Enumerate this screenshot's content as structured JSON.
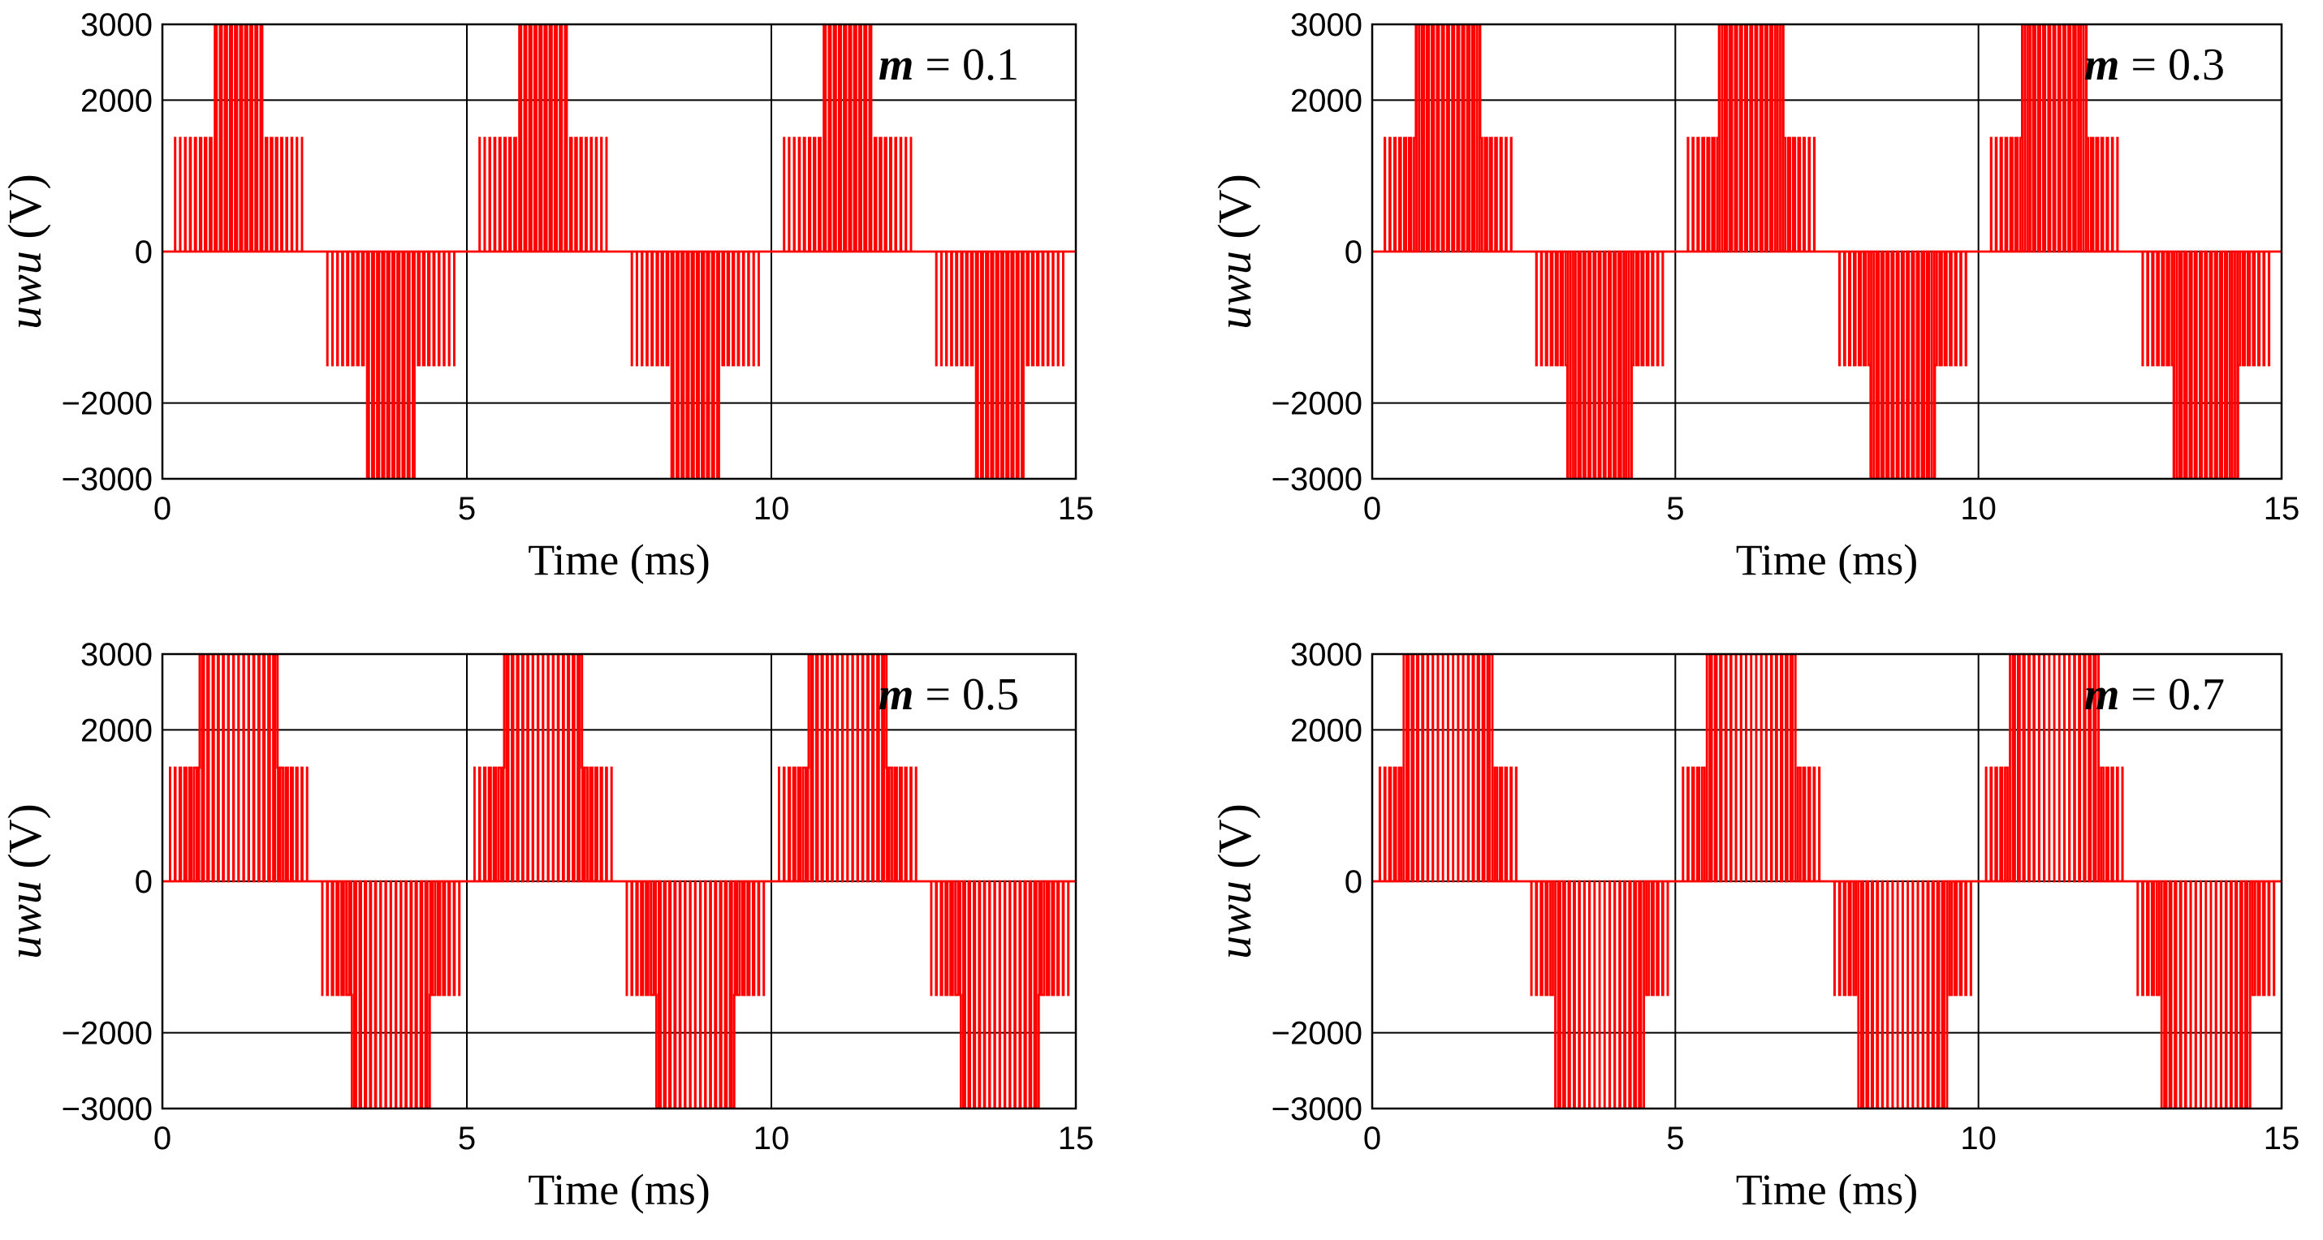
{
  "figure": {
    "colors": {
      "signal": "#ff0000",
      "axes": "#000000",
      "background": "#ffffff"
    }
  },
  "chart_data": [
    {
      "type": "line",
      "panel": "top-left",
      "title": "",
      "xlabel": "Time (ms)",
      "ylabel_main": "u",
      "ylabel_sub": "wu",
      "ylabel_unit": " (V)",
      "xlim": [
        0,
        15
      ],
      "ylim": [
        -3000,
        3000
      ],
      "xticks": [
        0,
        5,
        10,
        15
      ],
      "xtick_labels": [
        "0",
        "5",
        "10",
        "15"
      ],
      "yticks": [
        -3000,
        -2000,
        0,
        2000,
        3000
      ],
      "ytick_labels": [
        "−3000",
        "−2000",
        "0",
        "2000",
        "3000"
      ],
      "grid": true,
      "annotation": {
        "m_text": "m",
        "value_text": " = 0.1",
        "position": "top-right"
      },
      "modulation_index": 0.1,
      "fundamental_period_ms": 5,
      "carrier_frequency_khz": 6,
      "pulse_levels_v": [
        -3000,
        -1500,
        1500,
        3000
      ],
      "series": [
        {
          "name": "uwu",
          "color": "#ff0000"
        }
      ]
    },
    {
      "type": "line",
      "panel": "top-right",
      "title": "",
      "xlabel": "Time (ms)",
      "ylabel_main": "u",
      "ylabel_sub": "wu",
      "ylabel_unit": " (V)",
      "xlim": [
        0,
        15
      ],
      "ylim": [
        -3000,
        3000
      ],
      "xticks": [
        0,
        5,
        10,
        15
      ],
      "xtick_labels": [
        "0",
        "5",
        "10",
        "15"
      ],
      "yticks": [
        -3000,
        -2000,
        0,
        2000,
        3000
      ],
      "ytick_labels": [
        "−3000",
        "−2000",
        "0",
        "2000",
        "3000"
      ],
      "grid": true,
      "annotation": {
        "m_text": "m",
        "value_text": " = 0.3",
        "position": "top-right"
      },
      "modulation_index": 0.3,
      "fundamental_period_ms": 5,
      "carrier_frequency_khz": 6,
      "pulse_levels_v": [
        -3000,
        -1500,
        1500,
        3000
      ],
      "series": [
        {
          "name": "uwu",
          "color": "#ff0000"
        }
      ]
    },
    {
      "type": "line",
      "panel": "bottom-left",
      "title": "",
      "xlabel": "Time (ms)",
      "ylabel_main": "u",
      "ylabel_sub": "wu",
      "ylabel_unit": " (V)",
      "xlim": [
        0,
        15
      ],
      "ylim": [
        -3000,
        3000
      ],
      "xticks": [
        0,
        5,
        10,
        15
      ],
      "xtick_labels": [
        "0",
        "5",
        "10",
        "15"
      ],
      "yticks": [
        -3000,
        -2000,
        0,
        2000,
        3000
      ],
      "ytick_labels": [
        "−3000",
        "−2000",
        "0",
        "2000",
        "3000"
      ],
      "grid": true,
      "annotation": {
        "m_text": "m",
        "value_text": " = 0.5",
        "position": "top-right"
      },
      "modulation_index": 0.5,
      "fundamental_period_ms": 5,
      "carrier_frequency_khz": 6,
      "pulse_levels_v": [
        -3000,
        -1500,
        1500,
        3000
      ],
      "series": [
        {
          "name": "uwu",
          "color": "#ff0000"
        }
      ]
    },
    {
      "type": "line",
      "panel": "bottom-right",
      "title": "",
      "xlabel": "Time (ms)",
      "ylabel_main": "u",
      "ylabel_sub": "wu",
      "ylabel_unit": " (V)",
      "xlim": [
        0,
        15
      ],
      "ylim": [
        -3000,
        3000
      ],
      "xticks": [
        0,
        5,
        10,
        15
      ],
      "xtick_labels": [
        "0",
        "5",
        "10",
        "15"
      ],
      "yticks": [
        -3000,
        -2000,
        0,
        2000,
        3000
      ],
      "ytick_labels": [
        "−3000",
        "−2000",
        "0",
        "2000",
        "3000"
      ],
      "grid": true,
      "annotation": {
        "m_text": "m",
        "value_text": " = 0.7",
        "position": "top-right"
      },
      "modulation_index": 0.7,
      "fundamental_period_ms": 5,
      "carrier_frequency_khz": 6,
      "pulse_levels_v": [
        -3000,
        -1500,
        1500,
        3000
      ],
      "series": [
        {
          "name": "uwu",
          "color": "#ff0000"
        }
      ]
    }
  ]
}
